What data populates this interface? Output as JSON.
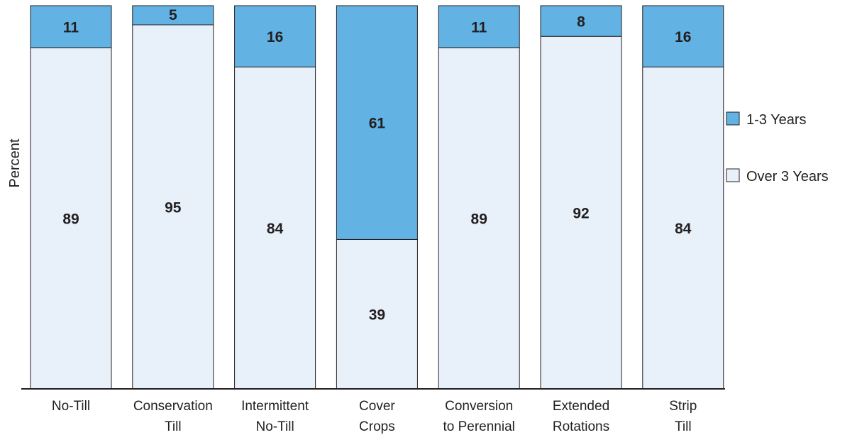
{
  "chart_data": {
    "type": "bar",
    "stacked": true,
    "percent_stacked": true,
    "categories": [
      [
        "No-Till"
      ],
      [
        "Conservation",
        "Till"
      ],
      [
        "Intermittent",
        "No-Till"
      ],
      [
        "Cover",
        "Crops"
      ],
      [
        "Conversion",
        "to Perennial"
      ],
      [
        "Extended",
        "Rotations"
      ],
      [
        "Strip",
        "Till"
      ]
    ],
    "series": [
      {
        "name": "Over 3 Years",
        "values": [
          89,
          95,
          84,
          39,
          89,
          92,
          84
        ],
        "color": "#e8f1fa"
      },
      {
        "name": "1-3 Years",
        "values": [
          11,
          5,
          16,
          61,
          11,
          8,
          16
        ],
        "color": "#62b2e3"
      }
    ],
    "ylabel": "Percent",
    "xlabel": "",
    "ylim": [
      0,
      100
    ],
    "grid": false,
    "legend_position": "right",
    "legend_order": [
      "1-3 Years",
      "Over 3 Years"
    ]
  }
}
